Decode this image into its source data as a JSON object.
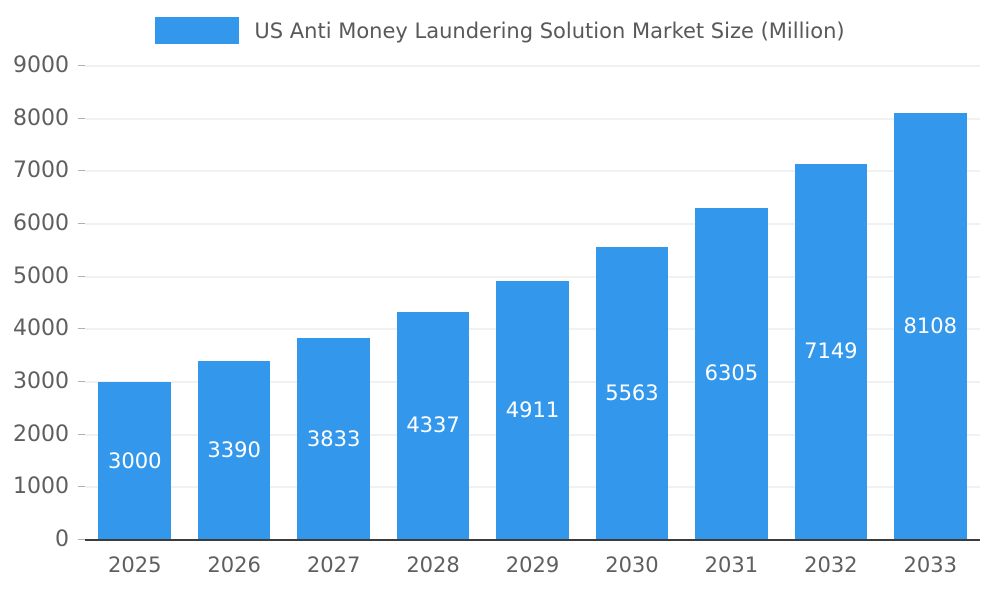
{
  "legend": {
    "swatch_color": "#3398ec"
  },
  "chart_data": {
    "type": "bar",
    "title": "US Anti Money Laundering Solution Market Size (Million)",
    "categories": [
      "2025",
      "2026",
      "2027",
      "2028",
      "2029",
      "2030",
      "2031",
      "2032",
      "2033"
    ],
    "values": [
      3000,
      3390,
      3833,
      4337,
      4911,
      5563,
      6305,
      7149,
      8108
    ],
    "xlabel": "",
    "ylabel": "",
    "ylim": [
      0,
      9000
    ],
    "ytick_step": 1000,
    "grid": true,
    "legend_position": "top",
    "bar_color": "#3398ec",
    "value_label_color": "#ffffff",
    "gridline_color": "#e3e3e3",
    "axis_line_color": "#3c3c3c",
    "tick_label_color": "#5f5f5f"
  }
}
